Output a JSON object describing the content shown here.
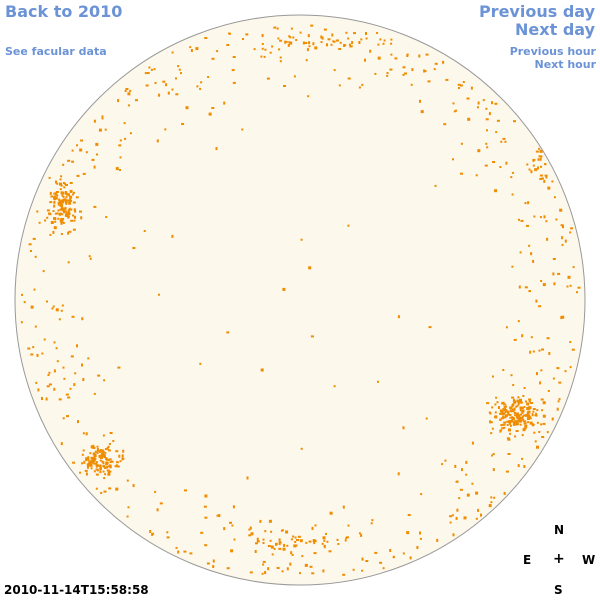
{
  "nav": {
    "back_label": "Back to 2010",
    "facular_label": "See facular data",
    "prev_day_label": "Previous day",
    "next_day_label": "Next day",
    "prev_hour_label": "Previous hour",
    "next_hour_label": "Next hour"
  },
  "compass": {
    "north": "N",
    "east": "E",
    "center": "+",
    "west": "W",
    "south": "S"
  },
  "timestamp": "2010-11-14T15:58:58",
  "colors": {
    "link": "#6b93d6",
    "disk_fill": "#fdf8ec",
    "disk_stroke": "#999999",
    "facula_dot": "#f08c00"
  }
}
